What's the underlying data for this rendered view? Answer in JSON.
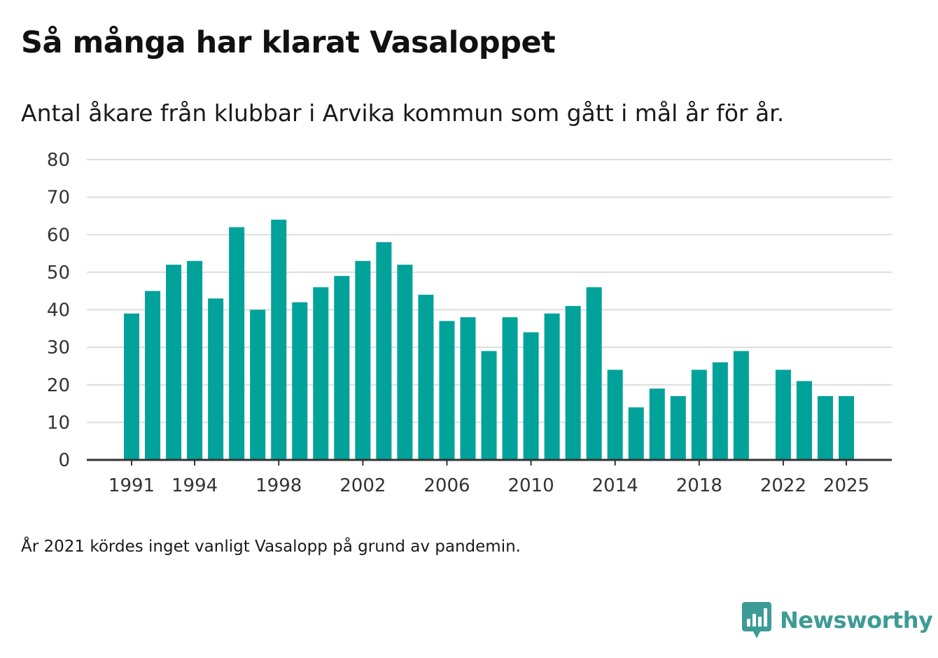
{
  "title": "Så många har klarat Vasaloppet",
  "subtitle": "Antal åkare från klubbar i Arvika kommun som gått i mål år för år.",
  "footnote": "År 2021 kördes inget vanligt Vasalopp på grund av pandemin.",
  "brand": {
    "name": "Newsworthy",
    "icon": "newsworthy-logo-icon",
    "color": "#3d9b95"
  },
  "colors": {
    "bar": "#00a29a",
    "grid": "#dddddd",
    "axis": "#333333"
  },
  "chart_data": {
    "type": "bar",
    "title": "Så många har klarat Vasaloppet",
    "xlabel": "",
    "ylabel": "",
    "ylim": [
      0,
      80
    ],
    "yticks": [
      0,
      10,
      20,
      30,
      40,
      50,
      60,
      70,
      80
    ],
    "grid": true,
    "categories": [
      1991,
      1992,
      1993,
      1994,
      1995,
      1996,
      1997,
      1998,
      1999,
      2000,
      2001,
      2002,
      2003,
      2004,
      2005,
      2006,
      2007,
      2008,
      2009,
      2010,
      2011,
      2012,
      2013,
      2014,
      2015,
      2016,
      2017,
      2018,
      2019,
      2020,
      2021,
      2022,
      2023,
      2024,
      2025
    ],
    "values": [
      39,
      45,
      52,
      53,
      43,
      62,
      40,
      64,
      42,
      46,
      49,
      53,
      58,
      52,
      44,
      37,
      38,
      29,
      38,
      34,
      39,
      41,
      46,
      24,
      14,
      19,
      17,
      24,
      26,
      29,
      null,
      24,
      21,
      17,
      17
    ],
    "xticks": [
      1991,
      1994,
      1998,
      2002,
      2006,
      2010,
      2014,
      2018,
      2022,
      2025
    ]
  }
}
